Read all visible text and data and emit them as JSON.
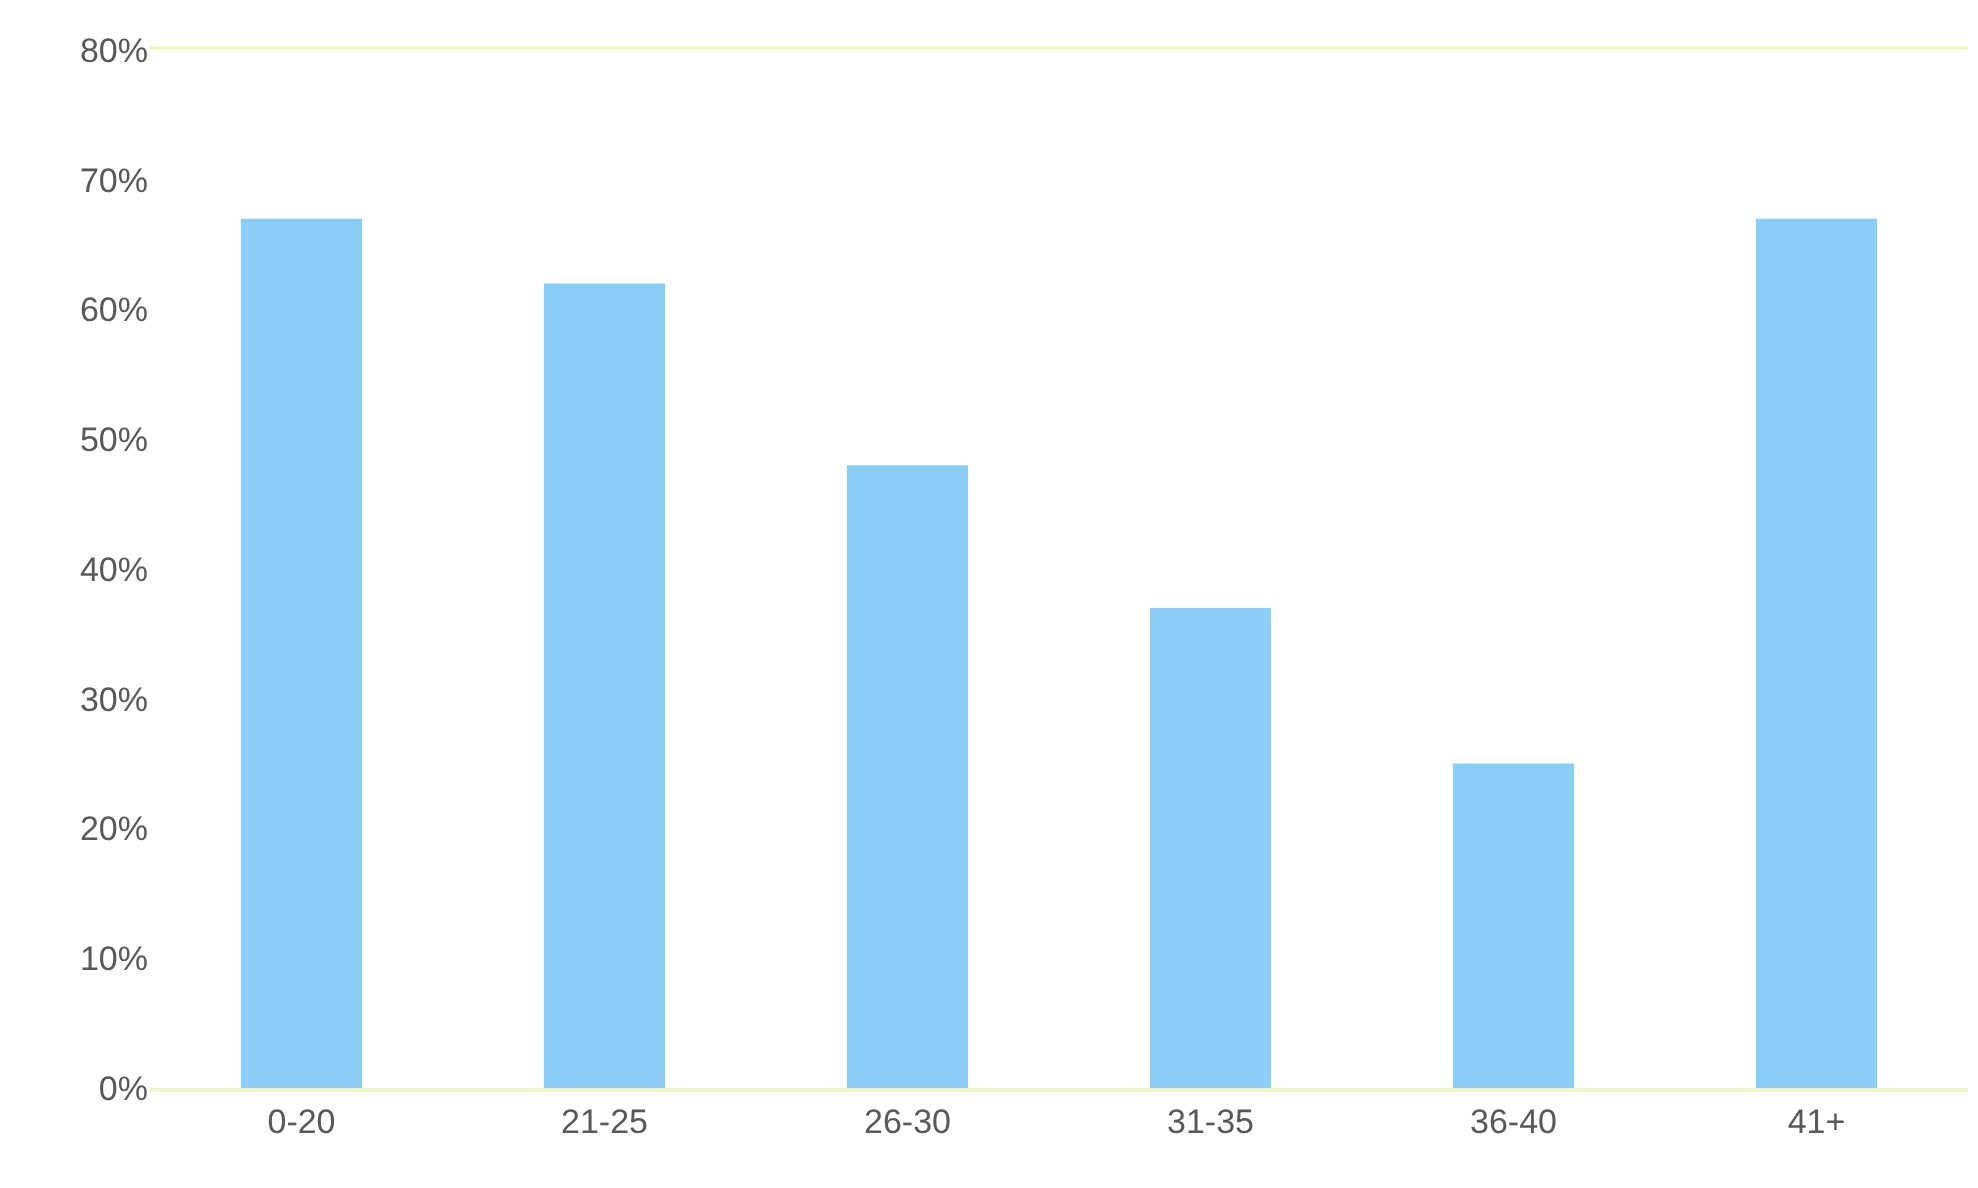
{
  "chart_data": {
    "type": "bar",
    "categories": [
      "0-20",
      "21-25",
      "26-30",
      "31-35",
      "36-40",
      "41+"
    ],
    "values": [
      67,
      62,
      48,
      37,
      25,
      67
    ],
    "color": "#8ccdf5",
    "ylim": [
      0,
      80
    ],
    "yticks": [
      {
        "value": 0,
        "label": "0%"
      },
      {
        "value": 10,
        "label": "10%"
      },
      {
        "value": 20,
        "label": "20%"
      },
      {
        "value": 30,
        "label": "30%"
      },
      {
        "value": 40,
        "label": "40%"
      },
      {
        "value": 50,
        "label": "50%"
      },
      {
        "value": 60,
        "label": "60%"
      },
      {
        "value": 70,
        "label": "70%"
      },
      {
        "value": 80,
        "label": "80%"
      }
    ]
  }
}
